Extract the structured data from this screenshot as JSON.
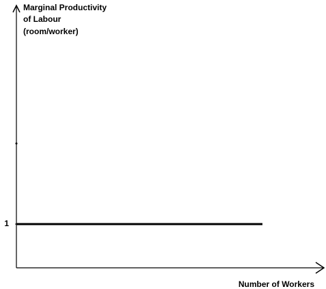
{
  "chart_data": {
    "type": "line",
    "y_label": [
      "Marginal Productivity",
      "of Labour",
      "(room/worker)"
    ],
    "x_label": "Number of Workers",
    "categories": [
      null,
      null
    ],
    "values": [
      1,
      1
    ],
    "color": "#000000",
    "ylim": [
      0,
      6
    ],
    "yticks": [
      1
    ],
    "grid": false
  }
}
